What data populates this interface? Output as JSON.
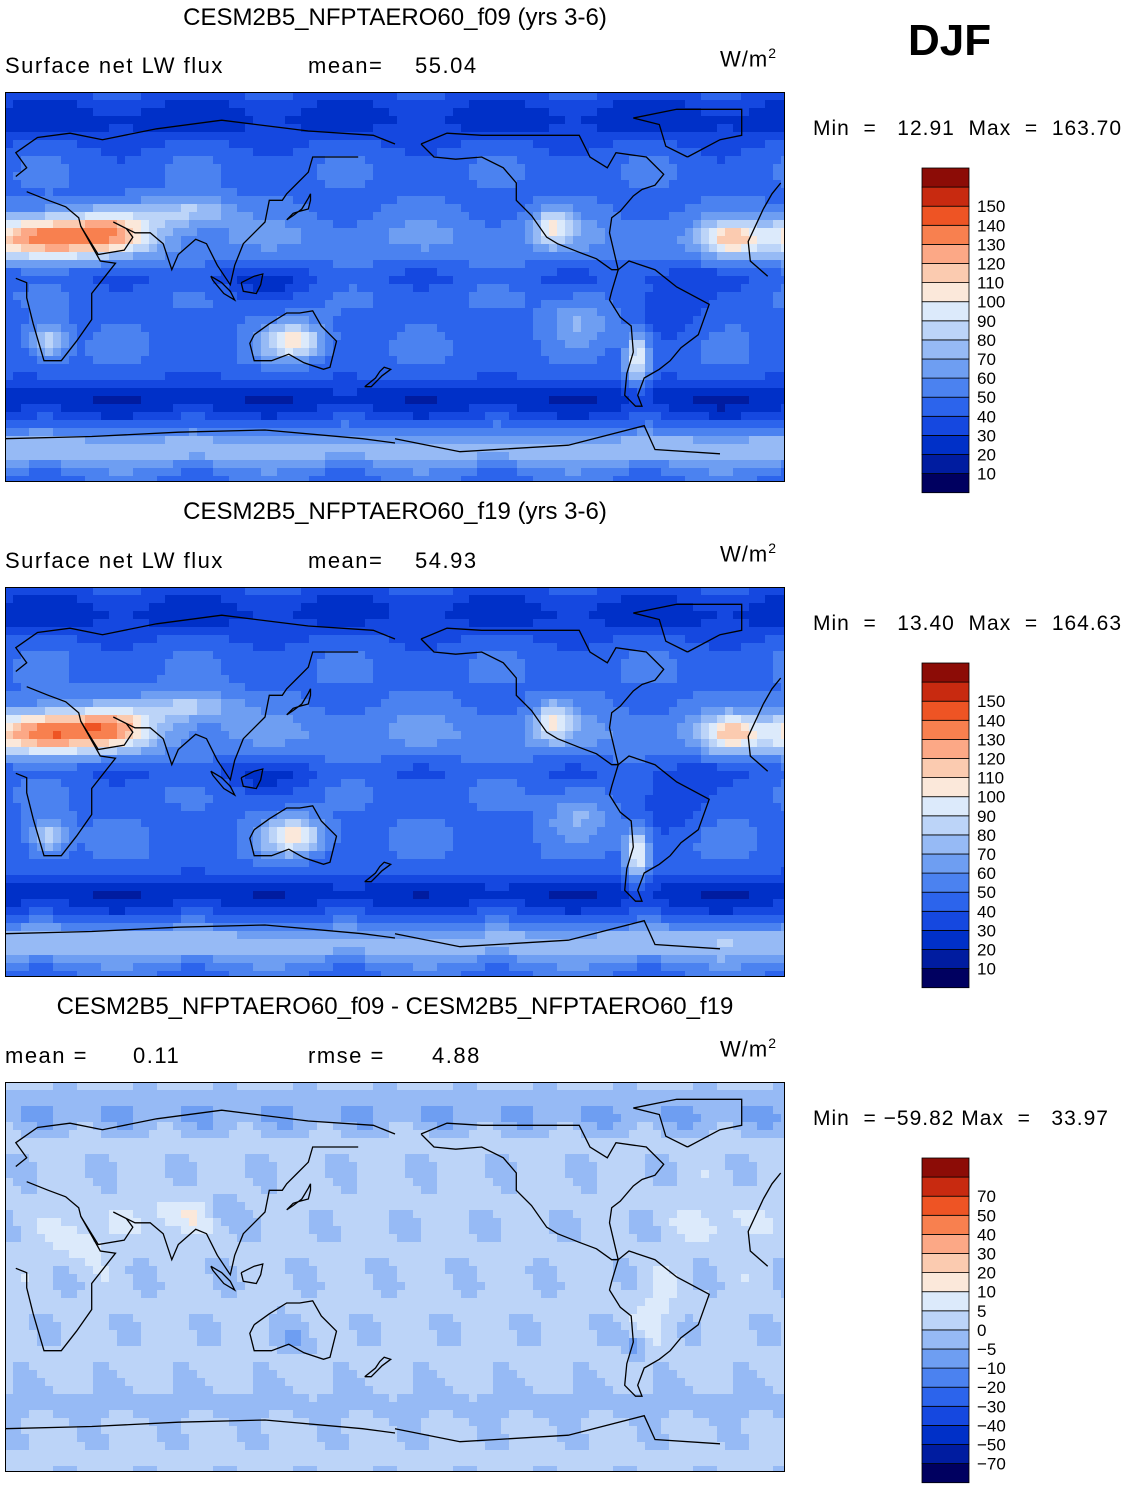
{
  "season": "DJF",
  "chart_data": [
    {
      "type": "heatmap",
      "title": "CESM2B5_NFPTAERO60_f09 (yrs 3-6)",
      "variable": "Surface net LW flux",
      "mean_label": "mean=",
      "mean": "55.04",
      "units": "W/m",
      "units_exp": "2",
      "min_label": "Min  =",
      "min": "12.91",
      "max_label": "Max  =",
      "max": "163.70",
      "levels": [
        10,
        20,
        30,
        40,
        50,
        60,
        70,
        80,
        90,
        100,
        110,
        120,
        130,
        140,
        150
      ],
      "level_labels": [
        "10",
        "20",
        "30",
        "40",
        "50",
        "60",
        "70",
        "80",
        "90",
        "100",
        "110",
        "120",
        "130",
        "140",
        "150"
      ],
      "colors": [
        "#000060",
        "#001ca0",
        "#0030c8",
        "#1548e0",
        "#2c64ec",
        "#4b82f0",
        "#6e9ef2",
        "#96baf5",
        "#bcd4f8",
        "#dceafb",
        "#fbe8da",
        "#fbcbb0",
        "#fca886",
        "#f8804f",
        "#ee5424",
        "#c82a10",
        "#8c0c06"
      ]
    },
    {
      "type": "heatmap",
      "title": "CESM2B5_NFPTAERO60_f19 (yrs 3-6)",
      "variable": "Surface net LW flux",
      "mean_label": "mean=",
      "mean": "54.93",
      "units": "W/m",
      "units_exp": "2",
      "min_label": "Min  =",
      "min": "13.40",
      "max_label": "Max  =",
      "max": "164.63",
      "levels": [
        10,
        20,
        30,
        40,
        50,
        60,
        70,
        80,
        90,
        100,
        110,
        120,
        130,
        140,
        150
      ],
      "level_labels": [
        "10",
        "20",
        "30",
        "40",
        "50",
        "60",
        "70",
        "80",
        "90",
        "100",
        "110",
        "120",
        "130",
        "140",
        "150"
      ],
      "colors": [
        "#000060",
        "#001ca0",
        "#0030c8",
        "#1548e0",
        "#2c64ec",
        "#4b82f0",
        "#6e9ef2",
        "#96baf5",
        "#bcd4f8",
        "#dceafb",
        "#fbe8da",
        "#fbcbb0",
        "#fca886",
        "#f8804f",
        "#ee5424",
        "#c82a10",
        "#8c0c06"
      ]
    },
    {
      "type": "heatmap",
      "title": "CESM2B5_NFPTAERO60_f09 - CESM2B5_NFPTAERO60_f19",
      "mean_label": "mean  =",
      "mean": "0.11",
      "rmse_label": "rmse  =",
      "rmse": "4.88",
      "units": "W/m",
      "units_exp": "2",
      "min_label": "Min  =",
      "min": "−59.82",
      "max_label": "Max  =",
      "max": "33.97",
      "levels": [
        -70,
        -50,
        -40,
        -30,
        -20,
        -10,
        -5,
        0,
        5,
        10,
        20,
        30,
        40,
        50,
        70
      ],
      "level_labels": [
        "−70",
        "−50",
        "−40",
        "−30",
        "−20",
        "−10",
        "−5",
        "0",
        "5",
        "10",
        "20",
        "30",
        "40",
        "50",
        "70"
      ],
      "colors": [
        "#000060",
        "#001ca0",
        "#0030c8",
        "#1548e0",
        "#2c64ec",
        "#4b82f0",
        "#6e9ef2",
        "#96baf5",
        "#bcd4f8",
        "#dceafb",
        "#fbe8da",
        "#fbcbb0",
        "#fca886",
        "#f8804f",
        "#ee5424",
        "#c82a10",
        "#8c0c06"
      ]
    }
  ]
}
